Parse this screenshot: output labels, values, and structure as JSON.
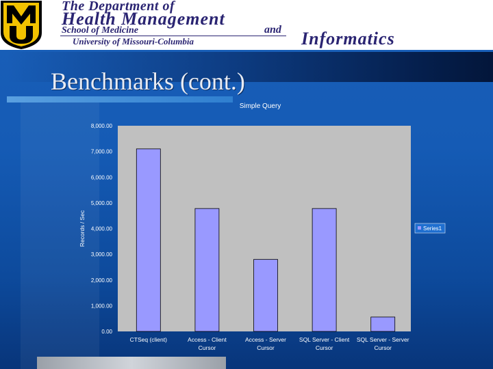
{
  "banner": {
    "line1": "The Department of",
    "line2": "Health Management",
    "line3": "School of Medicine",
    "and": "and",
    "line4": "Informatics",
    "line5": "University of Missouri-Columbia",
    "logo_text": "MU"
  },
  "slide": {
    "title": "Benchmarks (cont.)"
  },
  "colors": {
    "bar_fill": "#9999ff",
    "plot_bg": "#c0c0c0",
    "logo_gold": "#f2c200",
    "logo_black": "#000000",
    "banner_ink": "#2a2472"
  },
  "chart_data": {
    "type": "bar",
    "title": "Simple Query",
    "ylabel": "Records / Sec",
    "xlabel": "",
    "ylim": [
      0,
      8000
    ],
    "yticks": [
      0,
      1000,
      2000,
      3000,
      4000,
      5000,
      6000,
      7000,
      8000
    ],
    "ytick_labels": [
      "0.00",
      "1,000.00",
      "2,000.00",
      "3,000.00",
      "4,000.00",
      "5,000.00",
      "6,000.00",
      "7,000.00",
      "8,000.00"
    ],
    "categories": [
      [
        "CTSeq (client)"
      ],
      [
        "Access - Client",
        "Cursor"
      ],
      [
        "Access - Server",
        "Cursor"
      ],
      [
        "SQL Server - Client",
        "Cursor"
      ],
      [
        "SQL Server - Server",
        "Cursor"
      ]
    ],
    "series": [
      {
        "name": "Series1",
        "values": [
          7100,
          4780,
          2800,
          4780,
          560
        ]
      }
    ],
    "grid": false,
    "legend": "right"
  }
}
